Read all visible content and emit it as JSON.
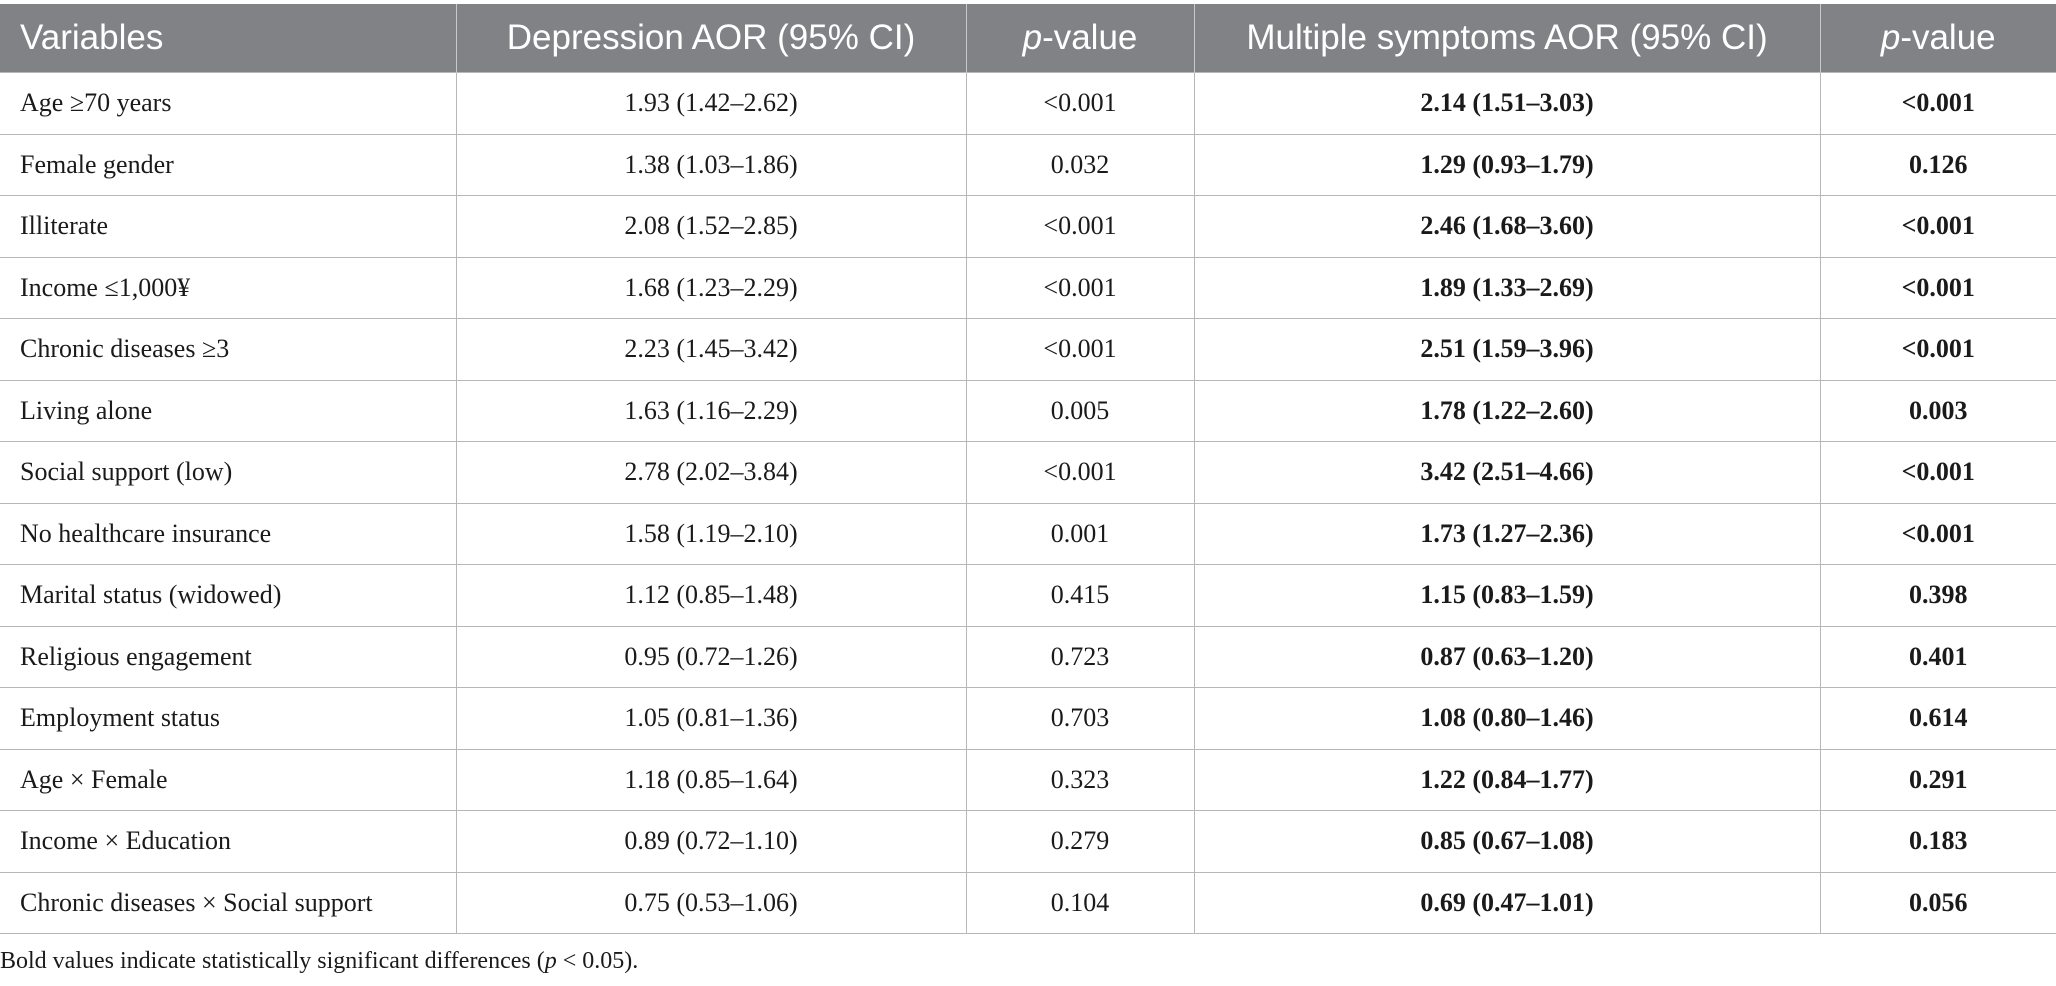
{
  "table": {
    "headers": [
      {
        "text": "Variables",
        "italic_prefix": ""
      },
      {
        "text": "Depression AOR (95% CI)",
        "italic_prefix": ""
      },
      {
        "text": "-value",
        "italic_prefix": "p"
      },
      {
        "text": "Multiple symptoms AOR (95% CI)",
        "italic_prefix": ""
      },
      {
        "text": "-value",
        "italic_prefix": "p"
      }
    ],
    "rows": [
      [
        "Age ≥70 years",
        "1.93 (1.42–2.62)",
        "<0.001",
        "2.14 (1.51–3.03)",
        "<0.001"
      ],
      [
        "Female gender",
        "1.38 (1.03–1.86)",
        "0.032",
        "1.29 (0.93–1.79)",
        "0.126"
      ],
      [
        "Illiterate",
        "2.08 (1.52–2.85)",
        "<0.001",
        "2.46 (1.68–3.60)",
        "<0.001"
      ],
      [
        "Income ≤1,000¥",
        "1.68 (1.23–2.29)",
        "<0.001",
        "1.89 (1.33–2.69)",
        "<0.001"
      ],
      [
        "Chronic diseases ≥3",
        "2.23 (1.45–3.42)",
        "<0.001",
        "2.51 (1.59–3.96)",
        "<0.001"
      ],
      [
        "Living alone",
        "1.63 (1.16–2.29)",
        "0.005",
        "1.78 (1.22–2.60)",
        "0.003"
      ],
      [
        "Social support (low)",
        "2.78 (2.02–3.84)",
        "<0.001",
        "3.42 (2.51–4.66)",
        "<0.001"
      ],
      [
        "No healthcare insurance",
        "1.58 (1.19–2.10)",
        "0.001",
        "1.73 (1.27–2.36)",
        "<0.001"
      ],
      [
        "Marital status (widowed)",
        "1.12 (0.85–1.48)",
        "0.415",
        "1.15 (0.83–1.59)",
        "0.398"
      ],
      [
        "Religious engagement",
        "0.95 (0.72–1.26)",
        "0.723",
        "0.87 (0.63–1.20)",
        "0.401"
      ],
      [
        "Employment status",
        "1.05 (0.81–1.36)",
        "0.703",
        "1.08 (0.80–1.46)",
        "0.614"
      ],
      [
        "Age × Female",
        "1.18 (0.85–1.64)",
        "0.323",
        "1.22 (0.84–1.77)",
        "0.291"
      ],
      [
        "Income × Education",
        "0.89 (0.72–1.10)",
        "0.279",
        "0.85 (0.67–1.08)",
        "0.183"
      ],
      [
        "Chronic diseases × Social support",
        "0.75 (0.53–1.06)",
        "0.104",
        "0.69 (0.47–1.01)",
        "0.056"
      ]
    ],
    "bold_columns": [
      3,
      4
    ]
  },
  "footnote": {
    "before": "Bold values indicate statistically significant differences (",
    "italic": "p",
    "after": " < 0.05)."
  },
  "colors": {
    "header_bg": "#808285",
    "header_text": "#ffffff",
    "grid_line": "#b7b7b7"
  }
}
